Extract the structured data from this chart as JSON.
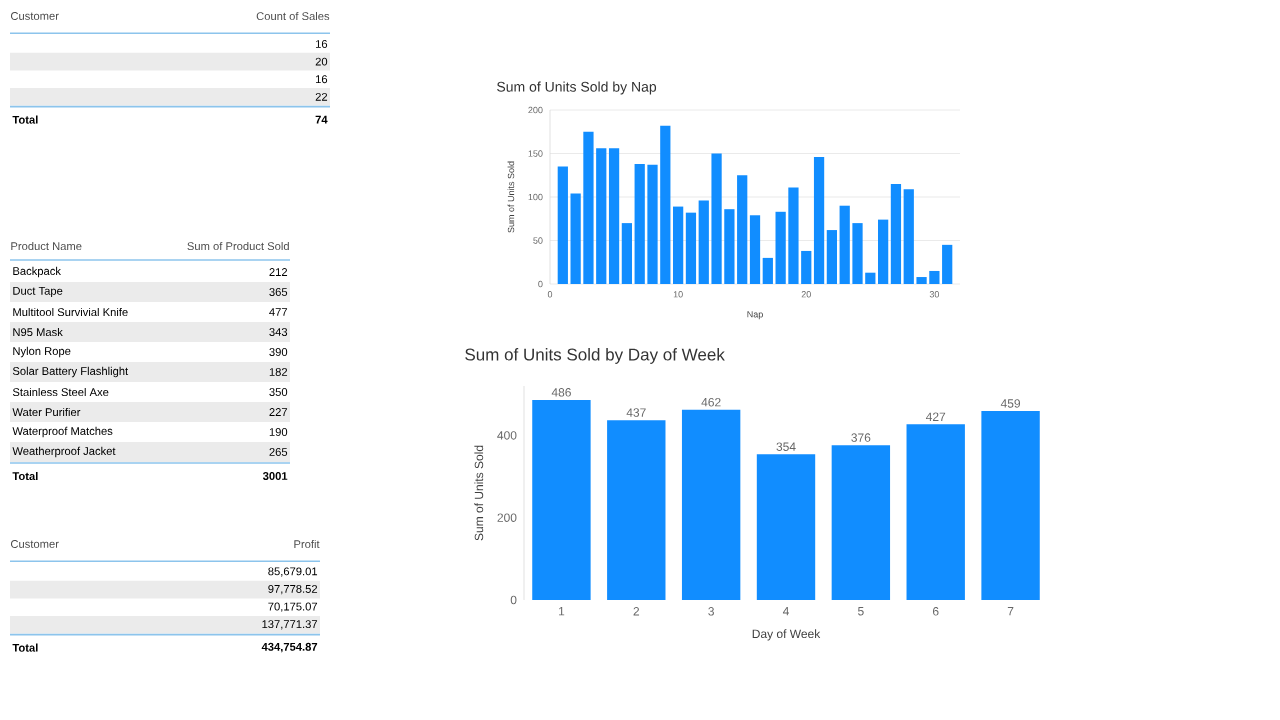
{
  "chart_data": [
    {
      "type": "other",
      "xlabel": "Customer",
      "ylabel": "Count of Sales",
      "categories": [
        null,
        null,
        null,
        null
      ],
      "values": [
        16,
        20,
        16,
        22
      ],
      "value_labels": [
        "16",
        "20",
        "16",
        "22"
      ],
      "totals": [
        "74"
      ],
      "annotations": [
        "Total"
      ]
    },
    {
      "type": "bar",
      "title": "Sum of Units Sold by Nap",
      "xlabel": "Nap",
      "ylabel": "Sum of Units Sold",
      "color": "#118dff",
      "x": [
        1,
        2,
        3,
        4,
        5,
        6,
        7,
        8,
        9,
        10,
        11,
        12,
        13,
        14,
        15,
        16,
        17,
        18,
        19,
        20,
        21,
        22,
        23,
        24,
        25,
        26,
        27,
        28,
        29,
        30,
        31
      ],
      "values": [
        135,
        104,
        175,
        156,
        156,
        70,
        138,
        137,
        182,
        89,
        82,
        96,
        150,
        86,
        125,
        79,
        30,
        83,
        111,
        38,
        146,
        62,
        90,
        70,
        13,
        74,
        115,
        109,
        8,
        15,
        45
      ],
      "xlim": [
        0,
        32
      ],
      "xticks": [
        0,
        10,
        20,
        30
      ],
      "ylim": [
        0,
        200
      ],
      "yticks": [
        0,
        50,
        100,
        150,
        200
      ],
      "grid": "y"
    },
    {
      "type": "other",
      "xlabel": "Product Name",
      "ylabel": "Sum of Product Sold",
      "categories": [
        "Backpack",
        "Duct Tape",
        "Multitool Survivial Knife",
        "N95 Mask",
        "Nylon Rope",
        "Solar Battery Flashlight",
        "Stainless Steel Axe",
        "Water Purifier",
        "Waterproof Matches",
        "Weatherproof Jacket"
      ],
      "values": [
        212,
        365,
        477,
        343,
        390,
        182,
        350,
        227,
        190,
        265
      ],
      "value_labels": [
        "212",
        "365",
        "477",
        "343",
        "390",
        "182",
        "350",
        "227",
        "190",
        "265"
      ],
      "totals": [
        "3001"
      ],
      "annotations": [
        "Total"
      ]
    },
    {
      "type": "bar",
      "title": "Sum of Units Sold by Day of Week",
      "xlabel": "Day of Week",
      "ylabel": "Sum of Units Sold",
      "color": "#118dff",
      "categories": [
        "1",
        "2",
        "3",
        "4",
        "5",
        "6",
        "7"
      ],
      "values": [
        486,
        437,
        462,
        354,
        376,
        427,
        459
      ],
      "ylim": [
        0,
        520
      ],
      "yticks": [
        0,
        200,
        400
      ],
      "data_labels": true
    },
    {
      "type": "other",
      "xlabel": "Customer",
      "ylabel": "Profit",
      "categories": [
        null,
        null,
        null,
        null
      ],
      "values": [
        85679.01,
        97778.52,
        70175.07,
        137771.37
      ],
      "value_labels": [
        "85,679.01",
        "97,778.52",
        "70,175.07",
        "137,771.37"
      ],
      "totals": [
        "434,754.87"
      ],
      "annotations": [
        "Total"
      ]
    }
  ]
}
